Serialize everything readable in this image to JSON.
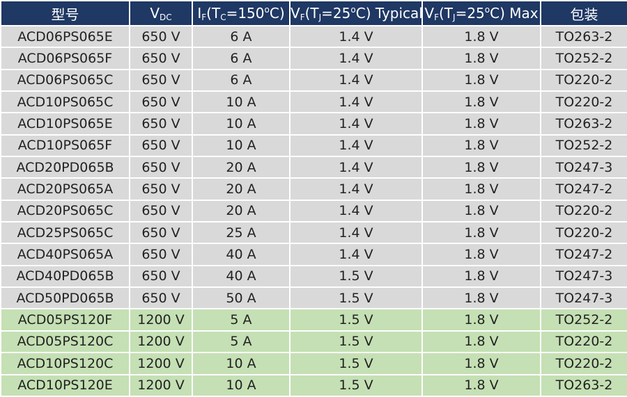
{
  "table": {
    "header": [
      [
        {
          "t": "型号"
        }
      ],
      [
        {
          "t": "V"
        },
        {
          "sub": "DC"
        }
      ],
      [
        {
          "t": "I"
        },
        {
          "sub": "F"
        },
        {
          "t": "(T"
        },
        {
          "sub": "C"
        },
        {
          "t": "=150"
        },
        {
          "sup": "o"
        },
        {
          "t": "C)"
        }
      ],
      [
        {
          "t": "V"
        },
        {
          "sub": "F"
        },
        {
          "t": "(T"
        },
        {
          "sub": "J"
        },
        {
          "t": "=25"
        },
        {
          "sup": "o"
        },
        {
          "t": "C) Typical"
        }
      ],
      [
        {
          "t": "V"
        },
        {
          "sub": "F"
        },
        {
          "t": "(T"
        },
        {
          "sub": "J"
        },
        {
          "t": "=25"
        },
        {
          "sup": "o"
        },
        {
          "t": "C)  Max"
        }
      ],
      [
        {
          "t": "包装"
        }
      ]
    ],
    "sections": [
      {
        "rows": [
          [
            "ACD06PS065E",
            "650 V",
            "6 A",
            "1.4 V",
            "1.8 V",
            "TO263-2"
          ],
          [
            "ACD06PS065F",
            "650 V",
            "6 A",
            "1.4 V",
            "1.8 V",
            "TO252-2"
          ],
          [
            "ACD06PS065C",
            "650 V",
            "6 A",
            "1.4 V",
            "1.8 V",
            "TO220-2"
          ],
          [
            "ACD10PS065C",
            "650 V",
            "10 A",
            "1.4 V",
            "1.8 V",
            "TO220-2"
          ],
          [
            "ACD10PS065E",
            "650 V",
            "10 A",
            "1.4 V",
            "1.8 V",
            "TO263-2"
          ],
          [
            "ACD10PS065F",
            "650 V",
            "10 A",
            "1.4 V",
            "1.8 V",
            "TO252-2"
          ],
          [
            "ACD20PD065B",
            "650 V",
            "20 A",
            "1.4 V",
            "1.8 V",
            "TO247-3"
          ],
          [
            "ACD20PS065A",
            "650 V",
            "20 A",
            "1.4 V",
            "1.8 V",
            "TO247-2"
          ],
          [
            "ACD20PS065C",
            "650 V",
            "20 A",
            "1.4 V",
            "1.8 V",
            "TO220-2"
          ],
          [
            "ACD25PS065C",
            "650 V",
            "25 A",
            "1.4 V",
            "1.8 V",
            "TO220-2"
          ],
          [
            "ACD40PS065A",
            "650 V",
            "40 A",
            "1.4 V",
            "1.8 V",
            "TO247-2"
          ],
          [
            "ACD40PD065B",
            "650 V",
            "40 A",
            "1.5 V",
            "1.8 V",
            "TO247-3"
          ],
          [
            "ACD50PD065B",
            "650 V",
            "50 A",
            "1.5 V",
            "1.8 V",
            "TO247-3"
          ]
        ]
      },
      {
        "rows": [
          [
            "ACD05PS120F",
            "1200 V",
            "5 A",
            "1.5 V",
            "1.8 V",
            "TO252-2"
          ],
          [
            "ACD05PS120C",
            "1200 V",
            "5 A",
            "1.5 V",
            "1.8 V",
            "TO220-2"
          ],
          [
            "ACD10PS120C",
            "1200 V",
            "10 A",
            "1.5 V",
            "1.8 V",
            "TO220-2"
          ],
          [
            "ACD10PS120E",
            "1200 V",
            "10 A",
            "1.5 V",
            "1.8 V",
            "TO263-2"
          ]
        ]
      }
    ]
  }
}
